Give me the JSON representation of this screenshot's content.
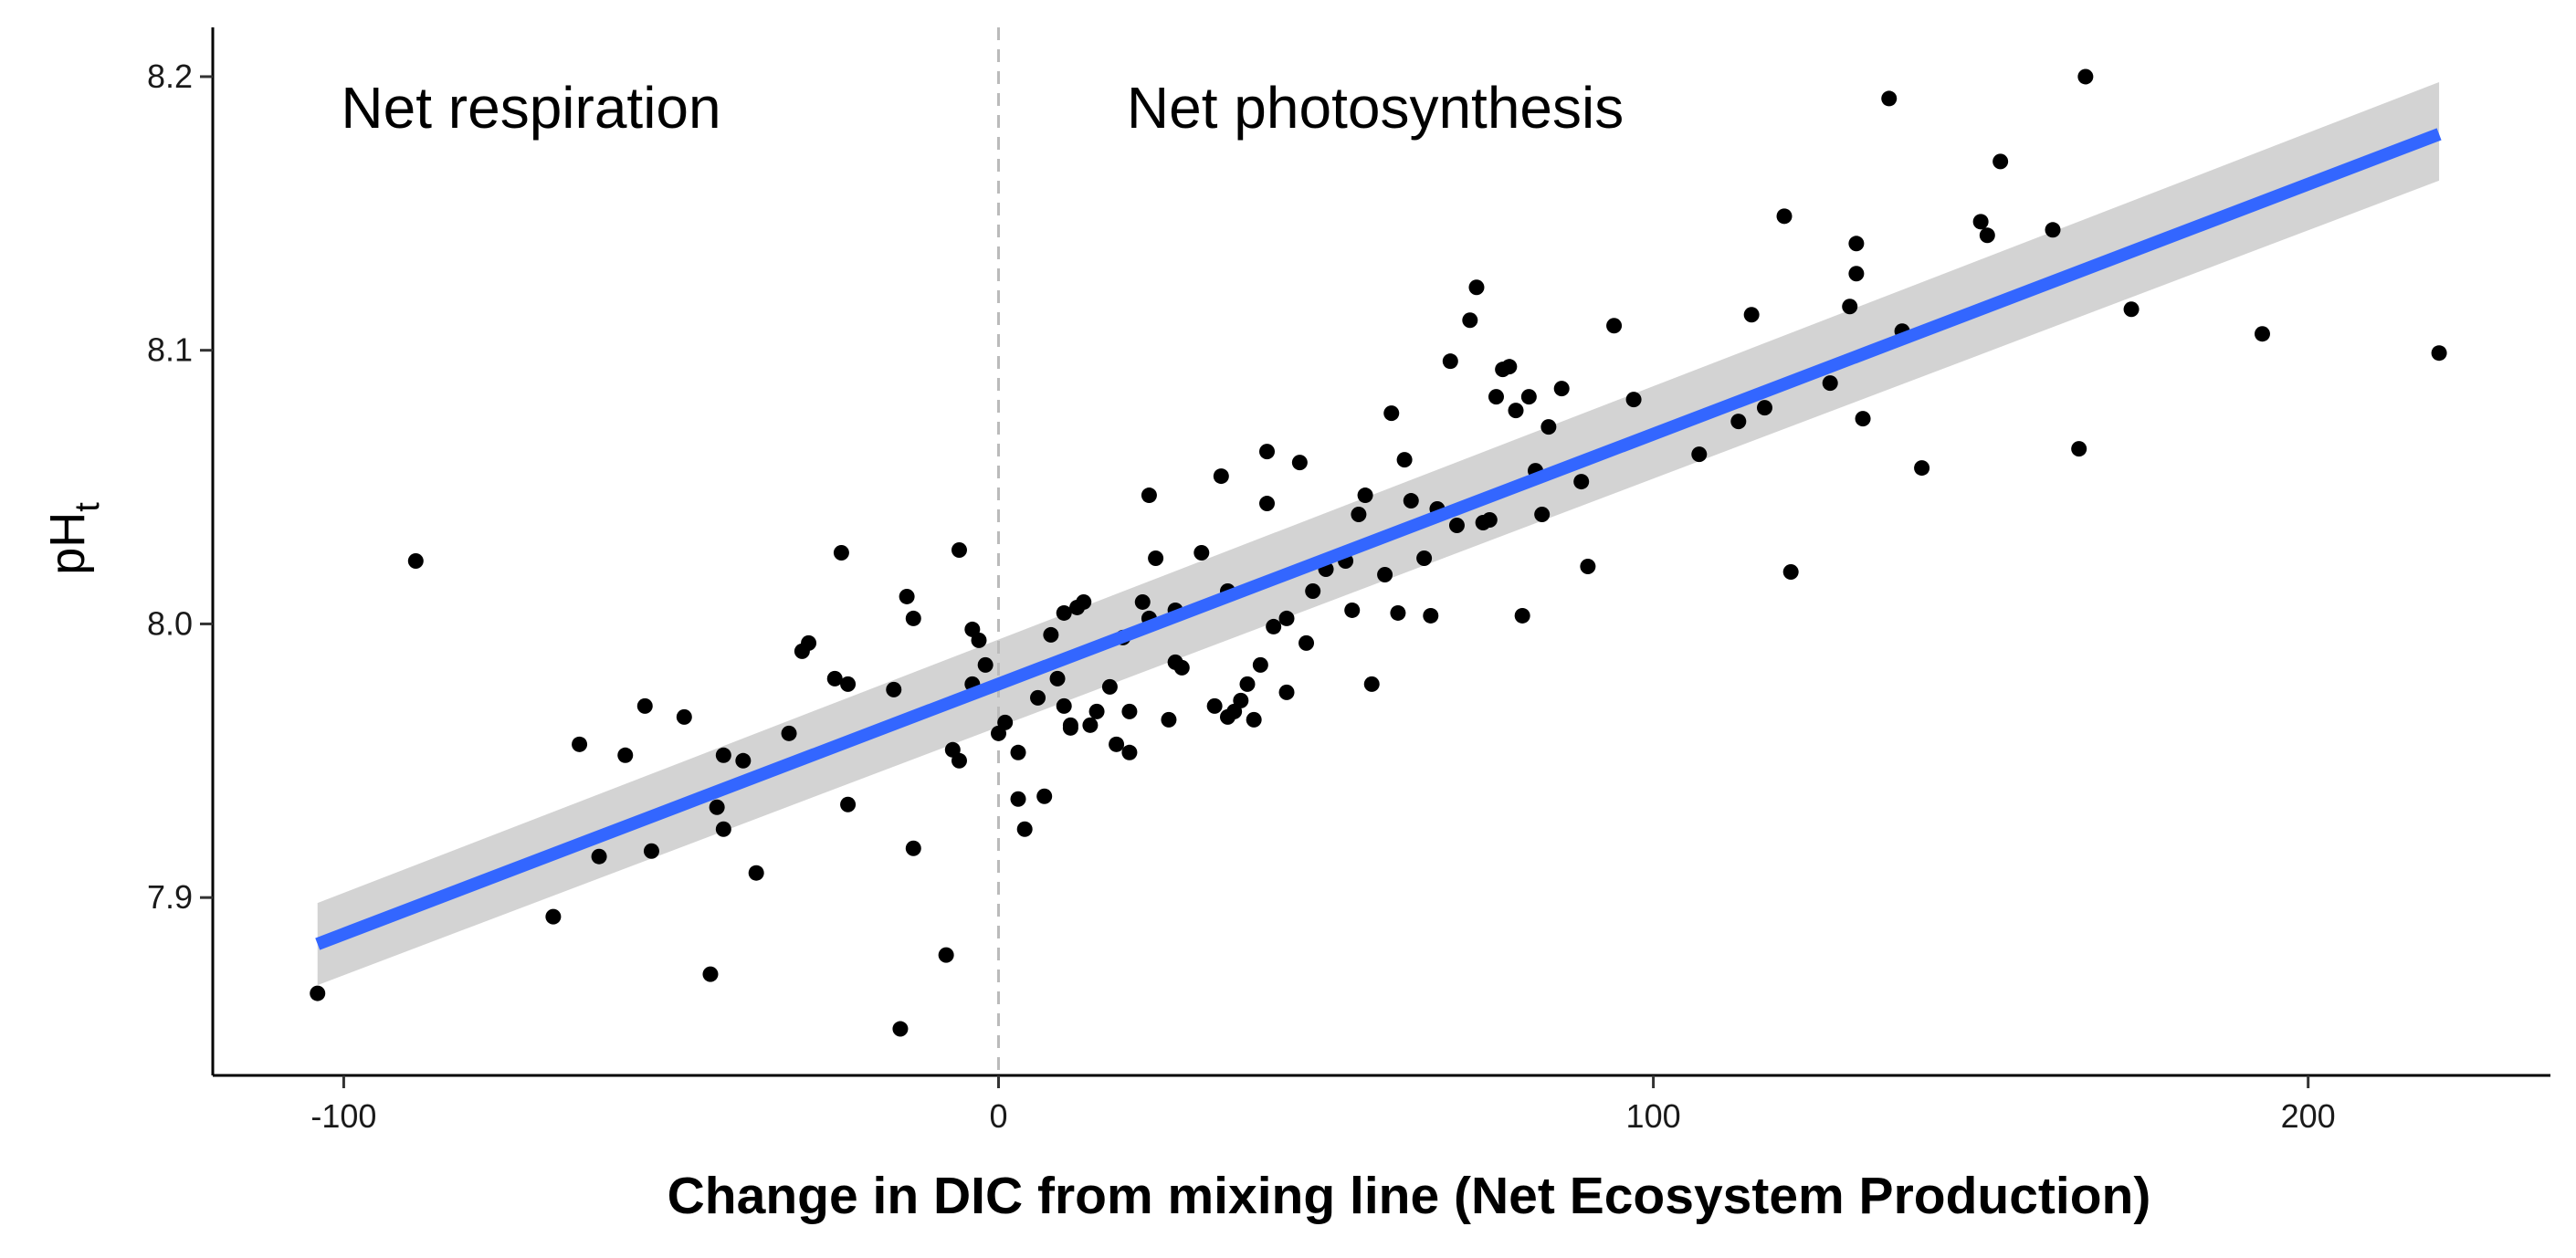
{
  "chart_data": {
    "type": "scatter",
    "title": "",
    "xlabel": "Change in DIC from mixing line (Net Ecosystem Production)",
    "ylabel_main": "pH",
    "ylabel_sub": "t",
    "xlim": [
      -120,
      237
    ],
    "ylim": [
      7.835,
      8.218
    ],
    "xticks": [
      -100,
      0,
      100,
      200
    ],
    "xtick_labels": [
      "-100",
      "0",
      "100",
      "200"
    ],
    "yticks": [
      7.9,
      8.0,
      8.1,
      8.2
    ],
    "ytick_labels": [
      "7.9",
      "8.0",
      "8.1",
      "8.2"
    ],
    "grid": false,
    "legend": "none",
    "annotations": [
      {
        "text": "Net respiration",
        "x": -100,
        "y": 8.188
      },
      {
        "text": "Net photosynthesis",
        "x": 20,
        "y": 8.188
      }
    ],
    "reference_line": {
      "axis": "x",
      "value": 0,
      "style": "dashed",
      "color": "#bbbbbb"
    },
    "fit": {
      "method": "linear",
      "x": [
        -104,
        220
      ],
      "y": [
        7.883,
        8.179
      ],
      "ci_lower": [
        7.868,
        8.162
      ],
      "ci_upper": [
        7.898,
        8.198
      ],
      "line_color": "#3366ff",
      "band_color": "#d3d3d3"
    },
    "point_color": "#000000",
    "points": [
      [
        -104,
        7.865
      ],
      [
        -89,
        8.023
      ],
      [
        -68,
        7.893
      ],
      [
        -64,
        7.956
      ],
      [
        -61,
        7.915
      ],
      [
        -57,
        7.952
      ],
      [
        -54,
        7.97
      ],
      [
        -53,
        7.917
      ],
      [
        -48,
        7.966
      ],
      [
        -44,
        7.872
      ],
      [
        -43,
        7.933
      ],
      [
        -42,
        7.952
      ],
      [
        -42,
        7.925
      ],
      [
        -39,
        7.95
      ],
      [
        -37,
        7.909
      ],
      [
        -32,
        7.96
      ],
      [
        -30,
        7.99
      ],
      [
        -29,
        7.993
      ],
      [
        -25,
        7.98
      ],
      [
        -24,
        8.026
      ],
      [
        -23,
        7.934
      ],
      [
        -23,
        7.978
      ],
      [
        -16,
        7.976
      ],
      [
        -15,
        7.852
      ],
      [
        -14,
        8.01
      ],
      [
        -13,
        8.002
      ],
      [
        -13,
        7.918
      ],
      [
        -8,
        7.879
      ],
      [
        -7,
        7.954
      ],
      [
        -6,
        7.95
      ],
      [
        -6,
        8.027
      ],
      [
        -4,
        7.978
      ],
      [
        -4,
        7.998
      ],
      [
        -3,
        7.994
      ],
      [
        -2,
        7.985
      ],
      [
        0,
        7.96
      ],
      [
        1,
        7.964
      ],
      [
        3,
        7.953
      ],
      [
        3,
        7.936
      ],
      [
        4,
        7.925
      ],
      [
        6,
        7.973
      ],
      [
        7,
        7.937
      ],
      [
        8,
        7.996
      ],
      [
        9,
        7.98
      ],
      [
        10,
        8.004
      ],
      [
        10,
        7.97
      ],
      [
        11,
        7.962
      ],
      [
        11,
        7.963
      ],
      [
        12,
        8.006
      ],
      [
        13,
        8.008
      ],
      [
        14,
        7.963
      ],
      [
        15,
        7.968
      ],
      [
        17,
        7.977
      ],
      [
        18,
        7.956
      ],
      [
        19,
        7.995
      ],
      [
        20,
        7.953
      ],
      [
        20,
        7.968
      ],
      [
        22,
        8.008
      ],
      [
        23,
        8.047
      ],
      [
        23,
        8.002
      ],
      [
        24,
        8.024
      ],
      [
        26,
        7.965
      ],
      [
        27,
        8.005
      ],
      [
        27,
        7.986
      ],
      [
        28,
        7.984
      ],
      [
        31,
        8.026
      ],
      [
        33,
        7.97
      ],
      [
        34,
        8.054
      ],
      [
        35,
        7.966
      ],
      [
        35,
        8.012
      ],
      [
        36,
        7.968
      ],
      [
        37,
        7.972
      ],
      [
        38,
        7.978
      ],
      [
        39,
        7.965
      ],
      [
        40,
        7.985
      ],
      [
        41,
        8.063
      ],
      [
        41,
        8.044
      ],
      [
        42,
        7.999
      ],
      [
        44,
        7.975
      ],
      [
        44,
        8.002
      ],
      [
        46,
        8.059
      ],
      [
        47,
        7.993
      ],
      [
        48,
        8.012
      ],
      [
        50,
        8.02
      ],
      [
        53,
        8.023
      ],
      [
        54,
        8.005
      ],
      [
        55,
        8.04
      ],
      [
        56,
        8.047
      ],
      [
        57,
        7.978
      ],
      [
        59,
        8.018
      ],
      [
        60,
        8.077
      ],
      [
        61,
        8.004
      ],
      [
        62,
        8.06
      ],
      [
        63,
        8.045
      ],
      [
        65,
        8.024
      ],
      [
        66,
        8.003
      ],
      [
        67,
        8.042
      ],
      [
        69,
        8.096
      ],
      [
        70,
        8.036
      ],
      [
        72,
        8.111
      ],
      [
        73,
        8.123
      ],
      [
        74,
        8.037
      ],
      [
        75,
        8.038
      ],
      [
        76,
        8.083
      ],
      [
        77,
        8.093
      ],
      [
        78,
        8.094
      ],
      [
        79,
        8.078
      ],
      [
        80,
        8.003
      ],
      [
        81,
        8.083
      ],
      [
        82,
        8.056
      ],
      [
        83,
        8.04
      ],
      [
        84,
        8.072
      ],
      [
        86,
        8.086
      ],
      [
        89,
        8.052
      ],
      [
        90,
        8.021
      ],
      [
        94,
        8.109
      ],
      [
        97,
        8.082
      ],
      [
        107,
        8.062
      ],
      [
        113,
        8.074
      ],
      [
        115,
        8.113
      ],
      [
        117,
        8.079
      ],
      [
        120,
        8.149
      ],
      [
        121,
        8.019
      ],
      [
        127,
        8.088
      ],
      [
        130,
        8.116
      ],
      [
        131,
        8.128
      ],
      [
        131,
        8.139
      ],
      [
        132,
        8.075
      ],
      [
        136,
        8.192
      ],
      [
        138,
        8.107
      ],
      [
        141,
        8.057
      ],
      [
        150,
        8.147
      ],
      [
        151,
        8.142
      ],
      [
        153,
        8.169
      ],
      [
        161,
        8.144
      ],
      [
        165,
        8.064
      ],
      [
        166,
        8.2
      ],
      [
        173,
        8.115
      ],
      [
        193,
        8.106
      ],
      [
        220,
        8.099
      ]
    ]
  }
}
